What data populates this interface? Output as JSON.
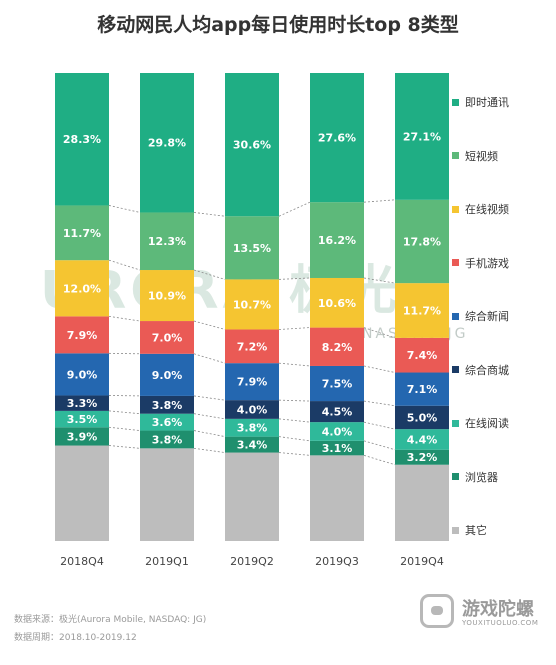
{
  "title": "移动网民人均app每日使用时长top 8类型",
  "chart_data": {
    "type": "bar",
    "stacked": true,
    "unit": "%",
    "categories": [
      "2018Q4",
      "2019Q1",
      "2019Q2",
      "2019Q3",
      "2019Q4"
    ],
    "series": [
      {
        "name": "其它",
        "color": "#bdbdbd",
        "values": [
          null,
          null,
          null,
          null,
          null
        ]
      },
      {
        "name": "浏览器",
        "color": "#1f8f6e",
        "values": [
          3.9,
          3.8,
          3.4,
          3.1,
          3.2
        ]
      },
      {
        "name": "在线阅读",
        "color": "#2fb99a",
        "values": [
          3.5,
          3.6,
          3.8,
          4.0,
          4.4
        ]
      },
      {
        "name": "综合商城",
        "color": "#1b3b66",
        "values": [
          3.3,
          3.8,
          4.0,
          4.5,
          5.0
        ]
      },
      {
        "name": "综合新闻",
        "color": "#2467b0",
        "values": [
          9.0,
          9.0,
          7.9,
          7.5,
          7.1
        ]
      },
      {
        "name": "手机游戏",
        "color": "#ea5a55",
        "values": [
          7.9,
          7.0,
          7.2,
          8.2,
          7.4
        ]
      },
      {
        "name": "在线视频",
        "color": "#f5c531",
        "values": [
          12.0,
          10.9,
          10.7,
          10.6,
          11.7
        ]
      },
      {
        "name": "短视频",
        "color": "#5db97a",
        "values": [
          11.7,
          12.3,
          13.5,
          16.2,
          17.8
        ]
      },
      {
        "name": "即时通讯",
        "color": "#1fae84",
        "values": [
          28.3,
          29.8,
          30.6,
          27.6,
          27.1
        ]
      }
    ],
    "ylim": [
      0,
      100
    ],
    "legend": "right",
    "grid": false
  },
  "watermark": {
    "brand": "URORA 极光",
    "sub": "NASDAQ:JG"
  },
  "footer": {
    "source_label": "数据来源：",
    "source_value": "极光(Aurora Mobile, NASDAQ: JG)",
    "period_label": "数据周期：",
    "period_value": "2018.10-2019.12"
  },
  "logo": {
    "name": "游戏陀螺",
    "url": "YOUXITUOLUO.COM"
  }
}
